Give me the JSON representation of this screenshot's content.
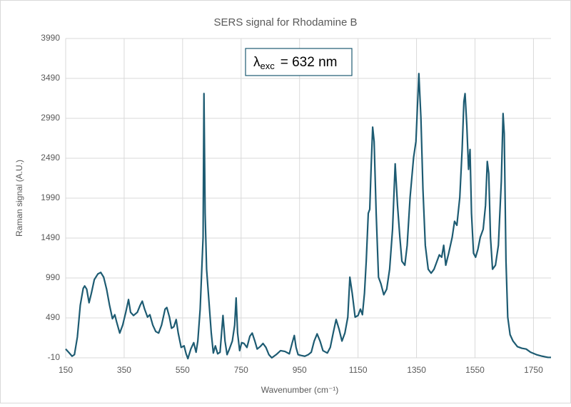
{
  "chart_data": {
    "type": "line",
    "title": "SERS signal for Rhodamine B",
    "x_label": "Wavenumber (cm⁻¹)",
    "y_label": "Raman signal (A.U.)",
    "annotation": {
      "symbol": "λ",
      "subscript": "exc",
      "text": "= 632 nm"
    },
    "color": "#1d5b72",
    "grid": true,
    "xlim": [
      150,
      1810
    ],
    "ylim": [
      -10,
      3990
    ],
    "xticks": [
      150,
      350,
      550,
      750,
      950,
      1150,
      1350,
      1550,
      1750
    ],
    "yticks": [
      -10,
      490,
      990,
      1490,
      1990,
      2490,
      2990,
      3490,
      3990
    ],
    "x": [
      150,
      160,
      172,
      180,
      190,
      200,
      210,
      215,
      222,
      230,
      238,
      248,
      260,
      270,
      280,
      290,
      300,
      310,
      318,
      325,
      335,
      345,
      355,
      365,
      372,
      382,
      395,
      405,
      412,
      420,
      430,
      438,
      448,
      458,
      468,
      478,
      490,
      496,
      505,
      512,
      520,
      528,
      535,
      545,
      555,
      562,
      568,
      578,
      588,
      596,
      602,
      610,
      620,
      623,
      627,
      632,
      640,
      648,
      655,
      662,
      670,
      678,
      688,
      695,
      702,
      710,
      720,
      728,
      733,
      738,
      745,
      752,
      760,
      770,
      780,
      788,
      797,
      805,
      815,
      825,
      835,
      845,
      855,
      870,
      885,
      900,
      915,
      925,
      932,
      938,
      945,
      955,
      968,
      980,
      990,
      1000,
      1010,
      1020,
      1030,
      1045,
      1055,
      1065,
      1075,
      1085,
      1095,
      1105,
      1115,
      1122,
      1130,
      1140,
      1150,
      1158,
      1165,
      1172,
      1178,
      1185,
      1190,
      1195,
      1200,
      1205,
      1212,
      1220,
      1228,
      1238,
      1248,
      1258,
      1268,
      1277,
      1285,
      1293,
      1300,
      1310,
      1318,
      1328,
      1340,
      1348,
      1358,
      1365,
      1372,
      1380,
      1390,
      1400,
      1410,
      1420,
      1428,
      1436,
      1443,
      1450,
      1460,
      1472,
      1480,
      1488,
      1498,
      1506,
      1512,
      1516,
      1522,
      1528,
      1533,
      1538,
      1545,
      1552,
      1560,
      1568,
      1578,
      1586,
      1592,
      1597,
      1603,
      1610,
      1620,
      1630,
      1640,
      1646,
      1650,
      1656,
      1662,
      1670,
      1680,
      1695,
      1710,
      1725,
      1740,
      1760,
      1780,
      1800,
      1810
    ],
    "values": [
      100,
      60,
      10,
      30,
      250,
      650,
      860,
      890,
      850,
      680,
      800,
      970,
      1040,
      1060,
      1000,
      850,
      650,
      480,
      530,
      430,
      300,
      400,
      550,
      720,
      560,
      520,
      560,
      650,
      700,
      600,
      500,
      530,
      400,
      320,
      300,
      400,
      600,
      620,
      500,
      360,
      380,
      470,
      300,
      120,
      140,
      40,
      -20,
      100,
      180,
      60,
      200,
      600,
      1500,
      3300,
      1800,
      1100,
      700,
      300,
      50,
      140,
      40,
      60,
      520,
      200,
      30,
      100,
      200,
      400,
      740,
      300,
      80,
      180,
      170,
      120,
      260,
      300,
      200,
      100,
      130,
      170,
      120,
      30,
      -10,
      30,
      80,
      70,
      40,
      180,
      270,
      120,
      30,
      20,
      10,
      30,
      60,
      200,
      290,
      200,
      80,
      50,
      120,
      300,
      470,
      350,
      200,
      300,
      500,
      1000,
      800,
      500,
      520,
      600,
      530,
      800,
      1200,
      1800,
      1850,
      2400,
      2880,
      2700,
      1800,
      1000,
      920,
      780,
      850,
      1100,
      1600,
      2420,
      1900,
      1500,
      1200,
      1150,
      1400,
      2000,
      2500,
      2700,
      3550,
      3000,
      2100,
      1400,
      1100,
      1050,
      1100,
      1200,
      1280,
      1250,
      1400,
      1150,
      1300,
      1500,
      1700,
      1650,
      2000,
      2600,
      3200,
      3300,
      2900,
      2350,
      2600,
      1800,
      1300,
      1250,
      1350,
      1500,
      1600,
      1900,
      2450,
      2300,
      1500,
      1100,
      1150,
      1400,
      2200,
      3050,
      2800,
      1200,
      500,
      280,
      200,
      130,
      110,
      100,
      60,
      30,
      10,
      -5,
      -5
    ]
  }
}
